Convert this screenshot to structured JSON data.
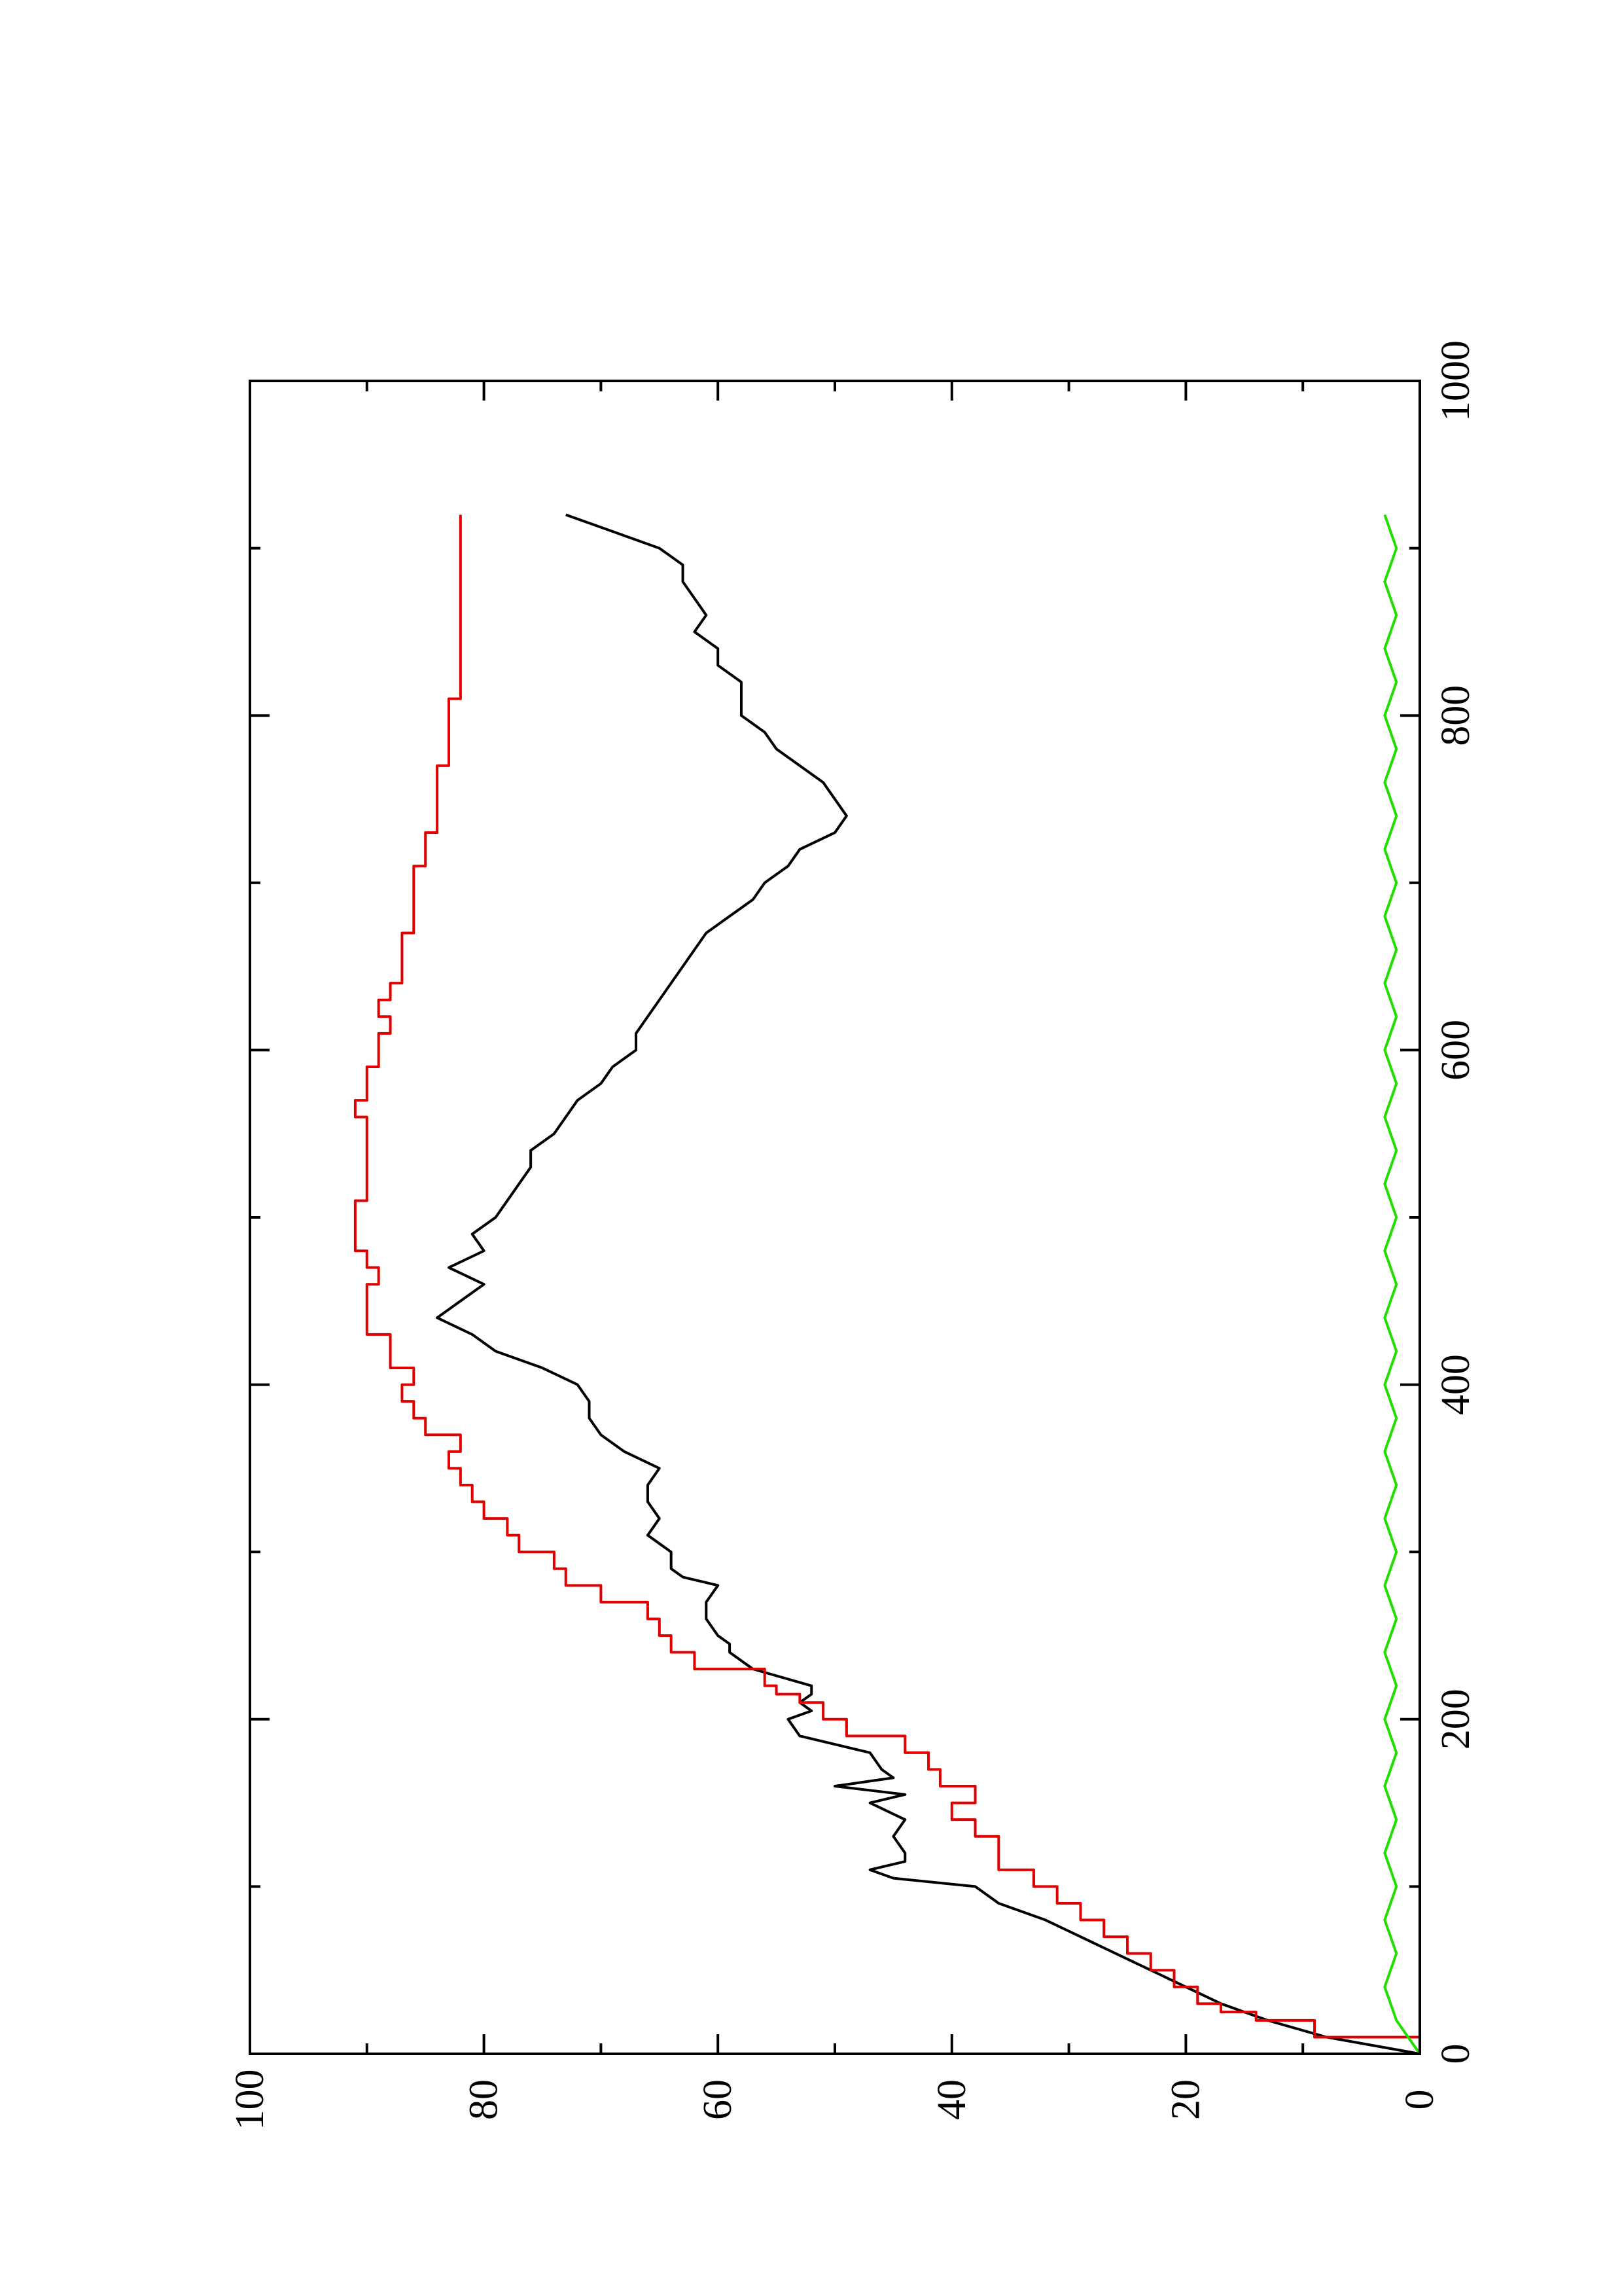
{
  "chart_data": {
    "type": "line",
    "orientation": "rotated-90-ccw",
    "title": "",
    "xlabel": "",
    "ylabel": "",
    "xlim": [
      0,
      1000
    ],
    "ylim": [
      0,
      100
    ],
    "x_ticks": [
      0,
      200,
      400,
      600,
      800,
      1000
    ],
    "x_ticks_minor": [
      100,
      300,
      500,
      700,
      900
    ],
    "y_ticks": [
      0,
      20,
      40,
      60,
      80,
      100
    ],
    "y_ticks_minor": [
      10,
      30,
      50,
      70,
      90
    ],
    "grid": false,
    "legend": "none",
    "series": [
      {
        "color": "#000000",
        "style": "line",
        "points": [
          [
            0,
            0
          ],
          [
            10,
            8
          ],
          [
            20,
            13
          ],
          [
            30,
            17
          ],
          [
            40,
            20
          ],
          [
            50,
            23
          ],
          [
            60,
            26
          ],
          [
            70,
            29
          ],
          [
            80,
            32
          ],
          [
            90,
            36
          ],
          [
            100,
            38
          ],
          [
            105,
            45
          ],
          [
            110,
            47
          ],
          [
            115,
            44
          ],
          [
            120,
            44
          ],
          [
            130,
            45
          ],
          [
            140,
            44
          ],
          [
            150,
            47
          ],
          [
            155,
            44
          ],
          [
            160,
            50
          ],
          [
            165,
            45
          ],
          [
            170,
            46
          ],
          [
            180,
            47
          ],
          [
            190,
            53
          ],
          [
            200,
            54
          ],
          [
            205,
            52
          ],
          [
            210,
            53
          ],
          [
            215,
            52
          ],
          [
            220,
            52
          ],
          [
            230,
            57
          ],
          [
            240,
            59
          ],
          [
            245,
            59
          ],
          [
            250,
            60
          ],
          [
            260,
            61
          ],
          [
            270,
            61
          ],
          [
            280,
            60
          ],
          [
            285,
            63
          ],
          [
            290,
            64
          ],
          [
            300,
            64
          ],
          [
            310,
            66
          ],
          [
            320,
            65
          ],
          [
            330,
            66
          ],
          [
            340,
            66
          ],
          [
            350,
            65
          ],
          [
            360,
            68
          ],
          [
            370,
            70
          ],
          [
            380,
            71
          ],
          [
            390,
            71
          ],
          [
            400,
            72
          ],
          [
            410,
            75
          ],
          [
            420,
            79
          ],
          [
            430,
            81
          ],
          [
            440,
            84
          ],
          [
            450,
            82
          ],
          [
            460,
            80
          ],
          [
            470,
            83
          ],
          [
            480,
            80
          ],
          [
            490,
            81
          ],
          [
            500,
            79
          ],
          [
            510,
            78
          ],
          [
            520,
            77
          ],
          [
            530,
            76
          ],
          [
            540,
            76
          ],
          [
            550,
            74
          ],
          [
            560,
            73
          ],
          [
            570,
            72
          ],
          [
            580,
            70
          ],
          [
            590,
            69
          ],
          [
            600,
            67
          ],
          [
            610,
            67
          ],
          [
            620,
            66
          ],
          [
            630,
            65
          ],
          [
            640,
            64
          ],
          [
            650,
            63
          ],
          [
            660,
            62
          ],
          [
            670,
            61
          ],
          [
            680,
            59
          ],
          [
            690,
            57
          ],
          [
            700,
            56
          ],
          [
            710,
            54
          ],
          [
            720,
            53
          ],
          [
            730,
            50
          ],
          [
            740,
            49
          ],
          [
            750,
            50
          ],
          [
            760,
            51
          ],
          [
            770,
            53
          ],
          [
            780,
            55
          ],
          [
            790,
            56
          ],
          [
            800,
            58
          ],
          [
            810,
            58
          ],
          [
            820,
            58
          ],
          [
            830,
            60
          ],
          [
            840,
            60
          ],
          [
            850,
            62
          ],
          [
            860,
            61
          ],
          [
            870,
            62
          ],
          [
            880,
            63
          ],
          [
            890,
            63
          ],
          [
            900,
            65
          ],
          [
            910,
            69
          ],
          [
            920,
            73
          ]
        ],
        "points_xy": "see_values",
        "values": []
      },
      {
        "color": "#e00000",
        "style": "step",
        "points": [
          [
            0,
            0
          ],
          [
            10,
            9
          ],
          [
            20,
            14
          ],
          [
            25,
            17
          ],
          [
            30,
            19
          ],
          [
            40,
            21
          ],
          [
            50,
            23
          ],
          [
            60,
            25
          ],
          [
            70,
            27
          ],
          [
            80,
            29
          ],
          [
            90,
            31
          ],
          [
            100,
            33
          ],
          [
            110,
            36
          ],
          [
            120,
            36
          ],
          [
            130,
            38
          ],
          [
            140,
            40
          ],
          [
            150,
            38
          ],
          [
            160,
            41
          ],
          [
            170,
            42
          ],
          [
            180,
            44
          ],
          [
            190,
            49
          ],
          [
            200,
            51
          ],
          [
            210,
            53
          ],
          [
            215,
            55
          ],
          [
            220,
            56
          ],
          [
            230,
            62
          ],
          [
            240,
            64
          ],
          [
            250,
            65
          ],
          [
            260,
            66
          ],
          [
            270,
            70
          ],
          [
            280,
            73
          ],
          [
            290,
            74
          ],
          [
            300,
            77
          ],
          [
            310,
            78
          ],
          [
            320,
            80
          ],
          [
            330,
            81
          ],
          [
            340,
            82
          ],
          [
            350,
            83
          ],
          [
            360,
            82
          ],
          [
            370,
            85
          ],
          [
            380,
            86
          ],
          [
            390,
            87
          ],
          [
            400,
            86
          ],
          [
            410,
            88
          ],
          [
            420,
            88
          ],
          [
            430,
            90
          ],
          [
            440,
            90
          ],
          [
            450,
            90
          ],
          [
            460,
            89
          ],
          [
            470,
            90
          ],
          [
            480,
            91
          ],
          [
            490,
            91
          ],
          [
            500,
            91
          ],
          [
            510,
            90
          ],
          [
            520,
            90
          ],
          [
            530,
            90
          ],
          [
            540,
            90
          ],
          [
            550,
            90
          ],
          [
            560,
            91
          ],
          [
            570,
            90
          ],
          [
            580,
            90
          ],
          [
            590,
            89
          ],
          [
            600,
            89
          ],
          [
            610,
            88
          ],
          [
            620,
            89
          ],
          [
            630,
            88
          ],
          [
            640,
            87
          ],
          [
            650,
            87
          ],
          [
            660,
            87
          ],
          [
            670,
            86
          ],
          [
            680,
            86
          ],
          [
            690,
            86
          ],
          [
            700,
            86
          ],
          [
            710,
            85
          ],
          [
            720,
            85
          ],
          [
            730,
            84
          ],
          [
            740,
            84
          ],
          [
            750,
            84
          ],
          [
            760,
            84
          ],
          [
            770,
            83
          ],
          [
            780,
            83
          ],
          [
            790,
            83
          ],
          [
            800,
            83
          ],
          [
            810,
            82
          ],
          [
            820,
            82
          ],
          [
            830,
            82
          ],
          [
            840,
            82
          ],
          [
            850,
            82
          ],
          [
            860,
            82
          ],
          [
            870,
            82
          ],
          [
            880,
            82
          ],
          [
            890,
            82
          ],
          [
            900,
            82
          ],
          [
            910,
            82
          ],
          [
            920,
            82
          ]
        ],
        "values": []
      },
      {
        "color": "#22dd00",
        "style": "noise",
        "points": [
          [
            0,
            0
          ],
          [
            20,
            2
          ],
          [
            40,
            3
          ],
          [
            60,
            2
          ],
          [
            80,
            3
          ],
          [
            100,
            2
          ],
          [
            120,
            3
          ],
          [
            140,
            2
          ],
          [
            160,
            3
          ],
          [
            180,
            2
          ],
          [
            200,
            3
          ],
          [
            220,
            2
          ],
          [
            240,
            3
          ],
          [
            260,
            2
          ],
          [
            280,
            3
          ],
          [
            300,
            2
          ],
          [
            320,
            3
          ],
          [
            340,
            2
          ],
          [
            360,
            3
          ],
          [
            380,
            2
          ],
          [
            400,
            3
          ],
          [
            420,
            2
          ],
          [
            440,
            3
          ],
          [
            460,
            2
          ],
          [
            480,
            3
          ],
          [
            500,
            2
          ],
          [
            520,
            3
          ],
          [
            540,
            2
          ],
          [
            560,
            3
          ],
          [
            580,
            2
          ],
          [
            600,
            3
          ],
          [
            620,
            2
          ],
          [
            640,
            3
          ],
          [
            660,
            2
          ],
          [
            680,
            3
          ],
          [
            700,
            2
          ],
          [
            720,
            3
          ],
          [
            740,
            2
          ],
          [
            760,
            3
          ],
          [
            780,
            2
          ],
          [
            800,
            3
          ],
          [
            820,
            2
          ],
          [
            840,
            3
          ],
          [
            860,
            2
          ],
          [
            880,
            3
          ],
          [
            900,
            2
          ],
          [
            920,
            3
          ]
        ],
        "values": []
      }
    ]
  }
}
